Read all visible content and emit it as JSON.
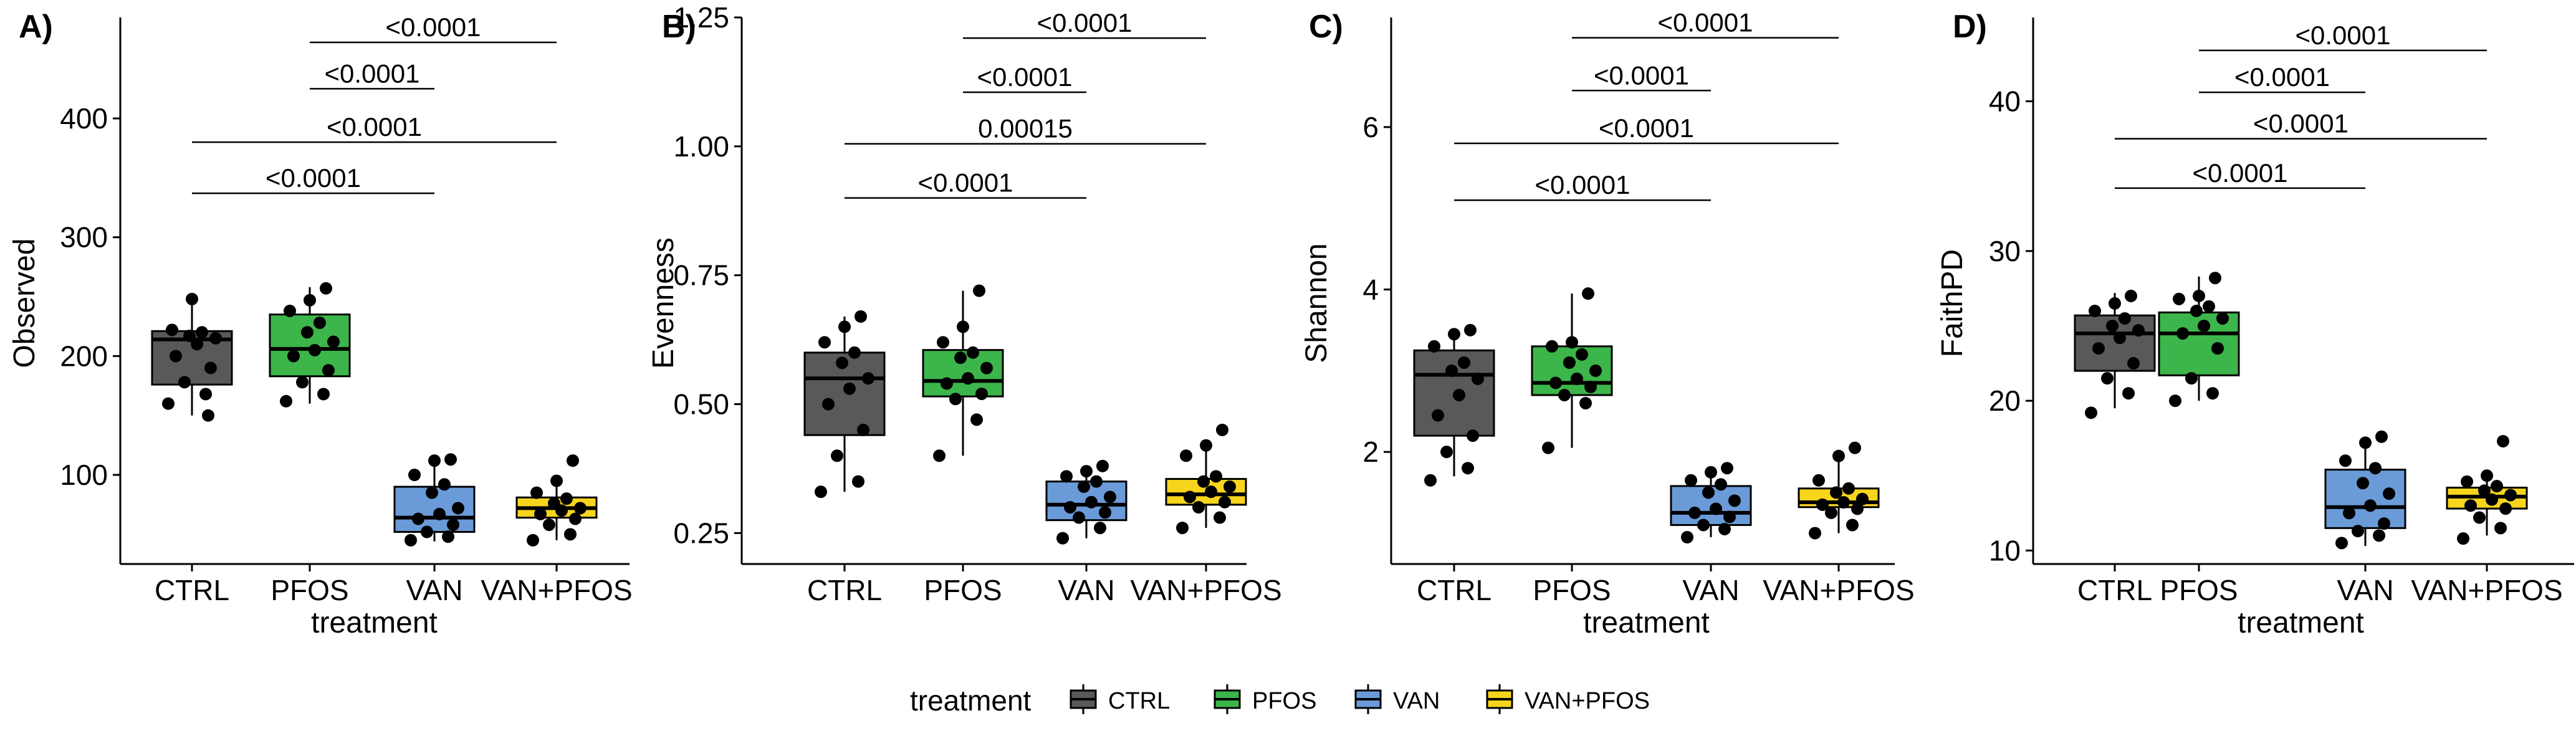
{
  "legend": {
    "title": "treatment",
    "items": [
      {
        "label": "CTRL",
        "color": "#595959"
      },
      {
        "label": "PFOS",
        "color": "#3cb54a"
      },
      {
        "label": "VAN",
        "color": "#6a9bd8"
      },
      {
        "label": "VAN+PFOS",
        "color": "#f7d51d"
      }
    ]
  },
  "chart_data": [
    {
      "type": "box",
      "panel_label": "A)",
      "xlabel": "treatment",
      "ylabel": "Observed",
      "categories": [
        "CTRL",
        "PFOS",
        "VAN",
        "VAN+PFOS"
      ],
      "ylim": [
        25,
        485
      ],
      "yticks": [
        100,
        200,
        300,
        400
      ],
      "ytick_labels": [
        "100",
        "200",
        "300",
        "400"
      ],
      "boxes": [
        {
          "q1": 176,
          "median": 214,
          "q3": 221,
          "whisker_low": 150,
          "whisker_high": 250,
          "color": "#595959"
        },
        {
          "q1": 183,
          "median": 206,
          "q3": 235,
          "whisker_low": 160,
          "whisker_high": 258,
          "color": "#3cb54a"
        },
        {
          "q1": 52,
          "median": 64,
          "q3": 90,
          "whisker_low": 44,
          "whisker_high": 113,
          "color": "#6a9bd8"
        },
        {
          "q1": 64,
          "median": 72,
          "q3": 81,
          "whisker_low": 45,
          "whisker_high": 95,
          "color": "#f7d51d"
        }
      ],
      "points": [
        [
          160,
          168,
          178,
          190,
          200,
          210,
          215,
          217,
          220,
          222,
          248,
          150
        ],
        [
          162,
          168,
          178,
          188,
          200,
          205,
          212,
          220,
          228,
          238,
          247,
          257
        ],
        [
          45,
          48,
          52,
          58,
          63,
          67,
          72,
          85,
          92,
          100,
          112,
          113
        ],
        [
          45,
          50,
          58,
          63,
          67,
          70,
          72,
          76,
          80,
          85,
          95,
          112
        ]
      ],
      "comparisons": [
        {
          "from": 1,
          "to": 3,
          "label": "<0.0001",
          "y": 464
        },
        {
          "from": 1,
          "to": 2,
          "label": "<0.0001",
          "y": 425
        },
        {
          "from": 0,
          "to": 3,
          "label": "<0.0001",
          "y": 380
        },
        {
          "from": 0,
          "to": 2,
          "label": "<0.0001",
          "y": 337
        }
      ]
    },
    {
      "type": "box",
      "panel_label": "B)",
      "xlabel": "",
      "ylabel": "Evenness",
      "categories": [
        "CTRL",
        "PFOS",
        "VAN",
        "VAN+PFOS"
      ],
      "ylim": [
        0.19,
        1.25
      ],
      "yticks": [
        0.25,
        0.5,
        0.75,
        1.0,
        1.25
      ],
      "ytick_labels": [
        "0.25",
        "0.50",
        "0.75",
        "1.00",
        "1.25"
      ],
      "boxes": [
        {
          "q1": 0.44,
          "median": 0.55,
          "q3": 0.6,
          "whisker_low": 0.33,
          "whisker_high": 0.67,
          "color": "#595959"
        },
        {
          "q1": 0.515,
          "median": 0.545,
          "q3": 0.605,
          "whisker_low": 0.4,
          "whisker_high": 0.72,
          "color": "#3cb54a"
        },
        {
          "q1": 0.275,
          "median": 0.305,
          "q3": 0.35,
          "whisker_low": 0.24,
          "whisker_high": 0.38,
          "color": "#6a9bd8"
        },
        {
          "q1": 0.305,
          "median": 0.325,
          "q3": 0.355,
          "whisker_low": 0.26,
          "whisker_high": 0.42,
          "color": "#f7d51d"
        }
      ],
      "points": [
        [
          0.33,
          0.35,
          0.4,
          0.45,
          0.5,
          0.53,
          0.55,
          0.58,
          0.6,
          0.62,
          0.65,
          0.67
        ],
        [
          0.4,
          0.47,
          0.51,
          0.52,
          0.54,
          0.55,
          0.57,
          0.59,
          0.6,
          0.62,
          0.65,
          0.72
        ],
        [
          0.24,
          0.26,
          0.28,
          0.29,
          0.3,
          0.31,
          0.32,
          0.34,
          0.35,
          0.36,
          0.37,
          0.38
        ],
        [
          0.26,
          0.28,
          0.3,
          0.31,
          0.32,
          0.33,
          0.34,
          0.35,
          0.36,
          0.4,
          0.42,
          0.45
        ]
      ],
      "comparisons": [
        {
          "from": 1,
          "to": 3,
          "label": "<0.0001",
          "y": 1.21
        },
        {
          "from": 1,
          "to": 2,
          "label": "<0.0001",
          "y": 1.105
        },
        {
          "from": 0,
          "to": 3,
          "label": "0.00015",
          "y": 1.005
        },
        {
          "from": 0,
          "to": 2,
          "label": "<0.0001",
          "y": 0.9
        }
      ]
    },
    {
      "type": "box",
      "panel_label": "C)",
      "xlabel": "treatment",
      "ylabel": "Shannon",
      "categories": [
        "CTRL",
        "PFOS",
        "VAN",
        "VAN+PFOS"
      ],
      "ylim": [
        0.62,
        7.35
      ],
      "yticks": [
        2,
        4,
        6
      ],
      "ytick_labels": [
        "2",
        "4",
        "6"
      ],
      "boxes": [
        {
          "q1": 2.2,
          "median": 2.95,
          "q3": 3.25,
          "whisker_low": 1.7,
          "whisker_high": 3.5,
          "color": "#595959"
        },
        {
          "q1": 2.7,
          "median": 2.85,
          "q3": 3.3,
          "whisker_low": 2.05,
          "whisker_high": 3.95,
          "color": "#3cb54a"
        },
        {
          "q1": 1.1,
          "median": 1.25,
          "q3": 1.58,
          "whisker_low": 0.95,
          "whisker_high": 1.8,
          "color": "#6a9bd8"
        },
        {
          "q1": 1.32,
          "median": 1.38,
          "q3": 1.55,
          "whisker_low": 1.0,
          "whisker_high": 2.0,
          "color": "#f7d51d"
        }
      ],
      "points": [
        [
          1.65,
          1.8,
          2.0,
          2.2,
          2.45,
          2.7,
          2.9,
          3.0,
          3.1,
          3.3,
          3.45,
          3.5
        ],
        [
          2.05,
          2.6,
          2.7,
          2.8,
          2.85,
          2.9,
          3.0,
          3.1,
          3.2,
          3.3,
          3.35,
          3.95
        ],
        [
          0.95,
          1.05,
          1.1,
          1.2,
          1.25,
          1.3,
          1.4,
          1.5,
          1.6,
          1.65,
          1.75,
          1.8
        ],
        [
          1.0,
          1.1,
          1.25,
          1.3,
          1.35,
          1.38,
          1.42,
          1.5,
          1.55,
          1.65,
          1.95,
          2.05
        ]
      ],
      "comparisons": [
        {
          "from": 1,
          "to": 3,
          "label": "<0.0001",
          "y": 7.1
        },
        {
          "from": 1,
          "to": 2,
          "label": "<0.0001",
          "y": 6.45
        },
        {
          "from": 0,
          "to": 3,
          "label": "<0.0001",
          "y": 5.8
        },
        {
          "from": 0,
          "to": 2,
          "label": "<0.0001",
          "y": 5.1
        }
      ]
    },
    {
      "type": "box",
      "panel_label": "D)",
      "xlabel": "treatment",
      "ylabel": "FaithPD",
      "categories": [
        "CTRL",
        "PFOS",
        "VAN",
        "VAN+PFOS"
      ],
      "ylim": [
        9.1,
        45.6
      ],
      "yticks": [
        10,
        20,
        30,
        40
      ],
      "ytick_labels": [
        "10",
        "20",
        "30",
        "40"
      ],
      "boxes": [
        {
          "q1": 22.0,
          "median": 24.5,
          "q3": 25.7,
          "whisker_low": 19.5,
          "whisker_high": 27.2,
          "color": "#595959"
        },
        {
          "q1": 21.7,
          "median": 24.5,
          "q3": 25.9,
          "whisker_low": 20.0,
          "whisker_high": 28.3,
          "color": "#3cb54a"
        },
        {
          "q1": 11.5,
          "median": 12.9,
          "q3": 15.4,
          "whisker_low": 10.3,
          "whisker_high": 17.5,
          "color": "#6a9bd8"
        },
        {
          "q1": 12.8,
          "median": 13.6,
          "q3": 14.2,
          "whisker_low": 11.0,
          "whisker_high": 15.0,
          "color": "#f7d51d"
        }
      ],
      "points": [
        [
          19.2,
          20.5,
          21.5,
          22.5,
          23.5,
          24.2,
          24.7,
          25.0,
          25.5,
          26.0,
          26.5,
          27.0
        ],
        [
          20.0,
          20.5,
          21.5,
          23.5,
          24.5,
          25.0,
          25.5,
          26.0,
          26.3,
          26.8,
          27.0,
          28.2
        ],
        [
          10.5,
          11.0,
          11.3,
          11.8,
          12.5,
          13.0,
          13.8,
          14.5,
          15.5,
          16.0,
          17.2,
          17.6
        ],
        [
          10.8,
          11.5,
          12.2,
          12.8,
          13.0,
          13.4,
          13.7,
          14.0,
          14.3,
          14.6,
          15.0,
          17.3
        ]
      ],
      "comparisons": [
        {
          "from": 1,
          "to": 3,
          "label": "<0.0001",
          "y": 43.4
        },
        {
          "from": 1,
          "to": 2,
          "label": "<0.0001",
          "y": 40.6
        },
        {
          "from": 0,
          "to": 3,
          "label": "<0.0001",
          "y": 37.5
        },
        {
          "from": 0,
          "to": 2,
          "label": "<0.0001",
          "y": 34.2
        }
      ]
    }
  ]
}
